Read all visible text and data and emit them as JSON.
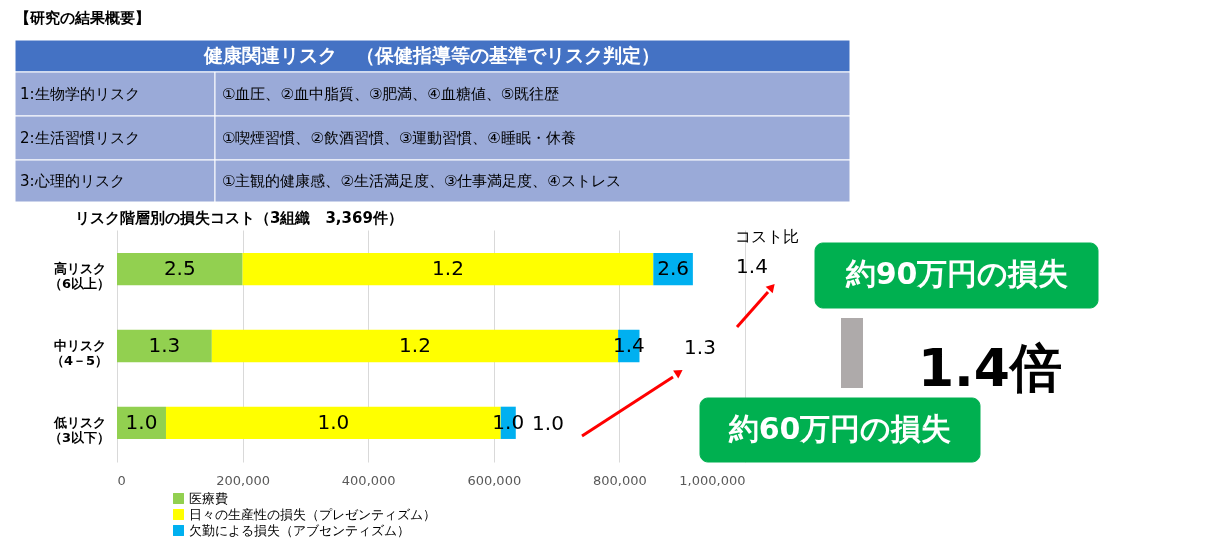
{
  "chart_data": {
    "type": "bar",
    "orientation": "horizontal",
    "stacked": true,
    "title": "リスク階層別の損失コスト（3組織　3,369件）",
    "categories": [
      "高リスク（6以上）",
      "中リスク（4－5）",
      "低リスク（3以下）"
    ],
    "series": [
      {
        "name": "医療費",
        "color": "#92d050",
        "values": [
          200000,
          151000,
          78000
        ]
      },
      {
        "name": "日々の生産性の損失（プレゼンティズム）",
        "color": "#ffff00",
        "values": [
          654000,
          647000,
          533000
        ]
      },
      {
        "name": "欠勤による損失（アブセンティズム）",
        "color": "#00b0f0",
        "values": [
          63000,
          34000,
          24000
        ]
      }
    ],
    "xlim": [
      0,
      1000000
    ],
    "xticks": [
      {
        "value": 0,
        "label": "0"
      },
      {
        "value": 200000,
        "label": "200,000"
      },
      {
        "value": 400000,
        "label": "400,000"
      },
      {
        "value": 600000,
        "label": "600,000"
      },
      {
        "value": 800000,
        "label": "800,000"
      },
      {
        "value": 1000000,
        "label": "1,000,000"
      }
    ],
    "grid": "x",
    "legend": "bottom",
    "annotations": [
      "【研究の結果概要】",
      "健康関連リスク　（保健指導等の基準でリスク判定）",
      "1:生物学的リスク",
      "①血圧、②血中脂質、③肥満、④血糖値、⑤既往歴",
      "2:生活習慣リスク",
      "①喫煙習慣、②飲酒習慣、③運動習慣、④睡眠・休養",
      "3:心理的リスク",
      "①主観的健康感、②生活満足度、③仕事満足度、④ストレス",
      "コスト比",
      "1.4",
      "1.3",
      "1.0",
      "約90万円の損失",
      "約60万円の損失",
      "1.4倍",
      "2.5",
      "1.2",
      "2.6",
      "1.3",
      "1.2",
      "1.4",
      "1.0",
      "1.0",
      "1.0"
    ]
  }
}
